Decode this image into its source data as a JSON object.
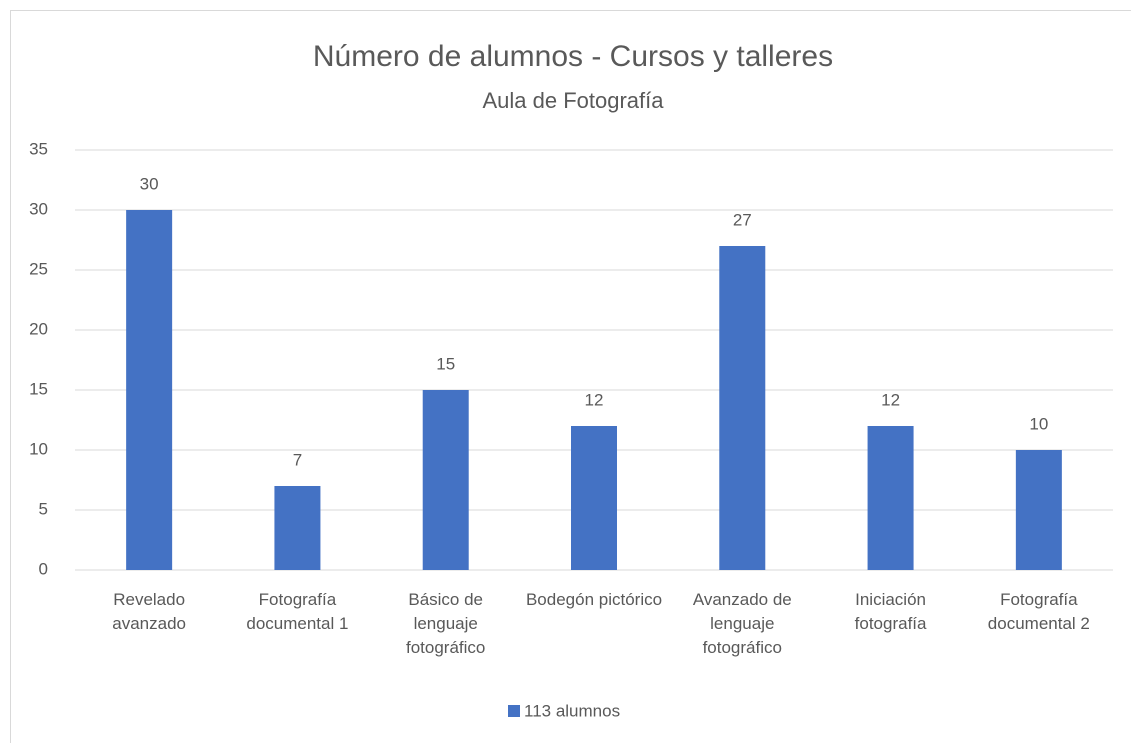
{
  "chart_data": {
    "type": "bar",
    "title": "Número de alumnos - Cursos y talleres",
    "subtitle": "Aula de Fotografía",
    "categories": [
      "Revelado avanzado",
      "Fotografía documental 1",
      "Básico de lenguaje fotográfico",
      "Bodegón pictórico",
      "Avanzado de lenguaje fotográfico",
      "Iniciación fotografía",
      "Fotografía documental 2"
    ],
    "series": [
      {
        "name": "113 alumnos",
        "color": "#4472c4",
        "values": [
          30,
          7,
          15,
          12,
          27,
          12,
          10
        ]
      }
    ],
    "ylim": [
      0,
      35
    ],
    "yticks": [
      0,
      5,
      10,
      15,
      20,
      25,
      30,
      35
    ],
    "grid": true,
    "legend": "bottom"
  }
}
